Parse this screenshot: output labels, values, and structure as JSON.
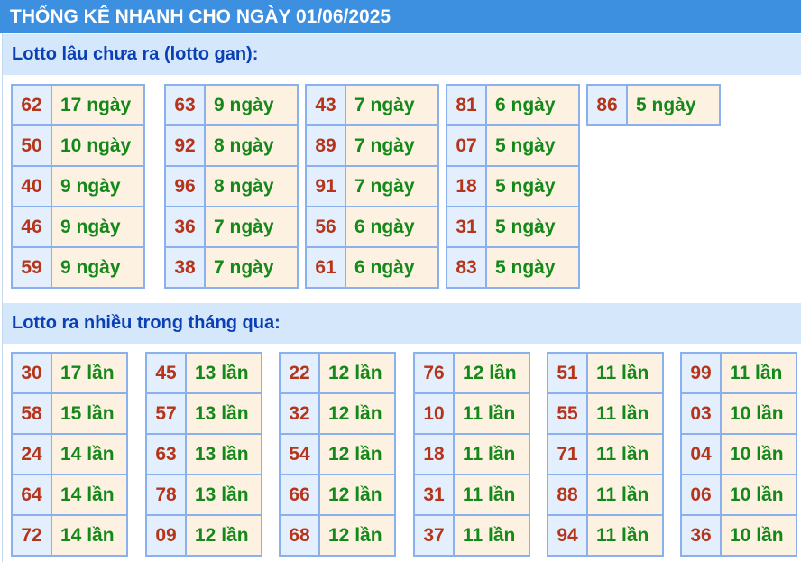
{
  "title": "THỐNG KÊ NHANH CHO NGÀY 01/06/2025",
  "gan": {
    "heading": "Lotto lâu chưa ra (lotto gan):",
    "columns": [
      [
        [
          "62",
          "17 ngày"
        ],
        [
          "50",
          "10 ngày"
        ],
        [
          "40",
          "9 ngày"
        ],
        [
          "46",
          "9 ngày"
        ],
        [
          "59",
          "9 ngày"
        ]
      ],
      [
        [
          "63",
          "9 ngày"
        ],
        [
          "92",
          "8 ngày"
        ],
        [
          "96",
          "8 ngày"
        ],
        [
          "36",
          "7 ngày"
        ],
        [
          "38",
          "7 ngày"
        ]
      ],
      [
        [
          "43",
          "7 ngày"
        ],
        [
          "89",
          "7 ngày"
        ],
        [
          "91",
          "7 ngày"
        ],
        [
          "56",
          "6 ngày"
        ],
        [
          "61",
          "6 ngày"
        ]
      ],
      [
        [
          "81",
          "6 ngày"
        ],
        [
          "07",
          "5 ngày"
        ],
        [
          "18",
          "5 ngày"
        ],
        [
          "31",
          "5 ngày"
        ],
        [
          "83",
          "5 ngày"
        ]
      ],
      [
        [
          "86",
          "5 ngày"
        ]
      ]
    ]
  },
  "nhieu": {
    "heading": "Lotto ra nhiều trong tháng qua:",
    "columns": [
      [
        [
          "30",
          "17 lần"
        ],
        [
          "58",
          "15 lần"
        ],
        [
          "24",
          "14 lần"
        ],
        [
          "64",
          "14 lần"
        ],
        [
          "72",
          "14 lần"
        ]
      ],
      [
        [
          "45",
          "13 lần"
        ],
        [
          "57",
          "13 lần"
        ],
        [
          "63",
          "13 lần"
        ],
        [
          "78",
          "13 lần"
        ],
        [
          "09",
          "12 lần"
        ]
      ],
      [
        [
          "22",
          "12 lần"
        ],
        [
          "32",
          "12 lần"
        ],
        [
          "54",
          "12 lần"
        ],
        [
          "66",
          "12 lần"
        ],
        [
          "68",
          "12 lần"
        ]
      ],
      [
        [
          "76",
          "12 lần"
        ],
        [
          "10",
          "11 lần"
        ],
        [
          "18",
          "11 lần"
        ],
        [
          "31",
          "11 lần"
        ],
        [
          "37",
          "11 lần"
        ]
      ],
      [
        [
          "51",
          "11 lần"
        ],
        [
          "55",
          "11 lần"
        ],
        [
          "71",
          "11 lần"
        ],
        [
          "88",
          "11 lần"
        ],
        [
          "94",
          "11 lần"
        ]
      ],
      [
        [
          "99",
          "11 lần"
        ],
        [
          "03",
          "10 lần"
        ],
        [
          "04",
          "10 lần"
        ],
        [
          "06",
          "10 lần"
        ],
        [
          "36",
          "10 lần"
        ]
      ]
    ]
  }
}
